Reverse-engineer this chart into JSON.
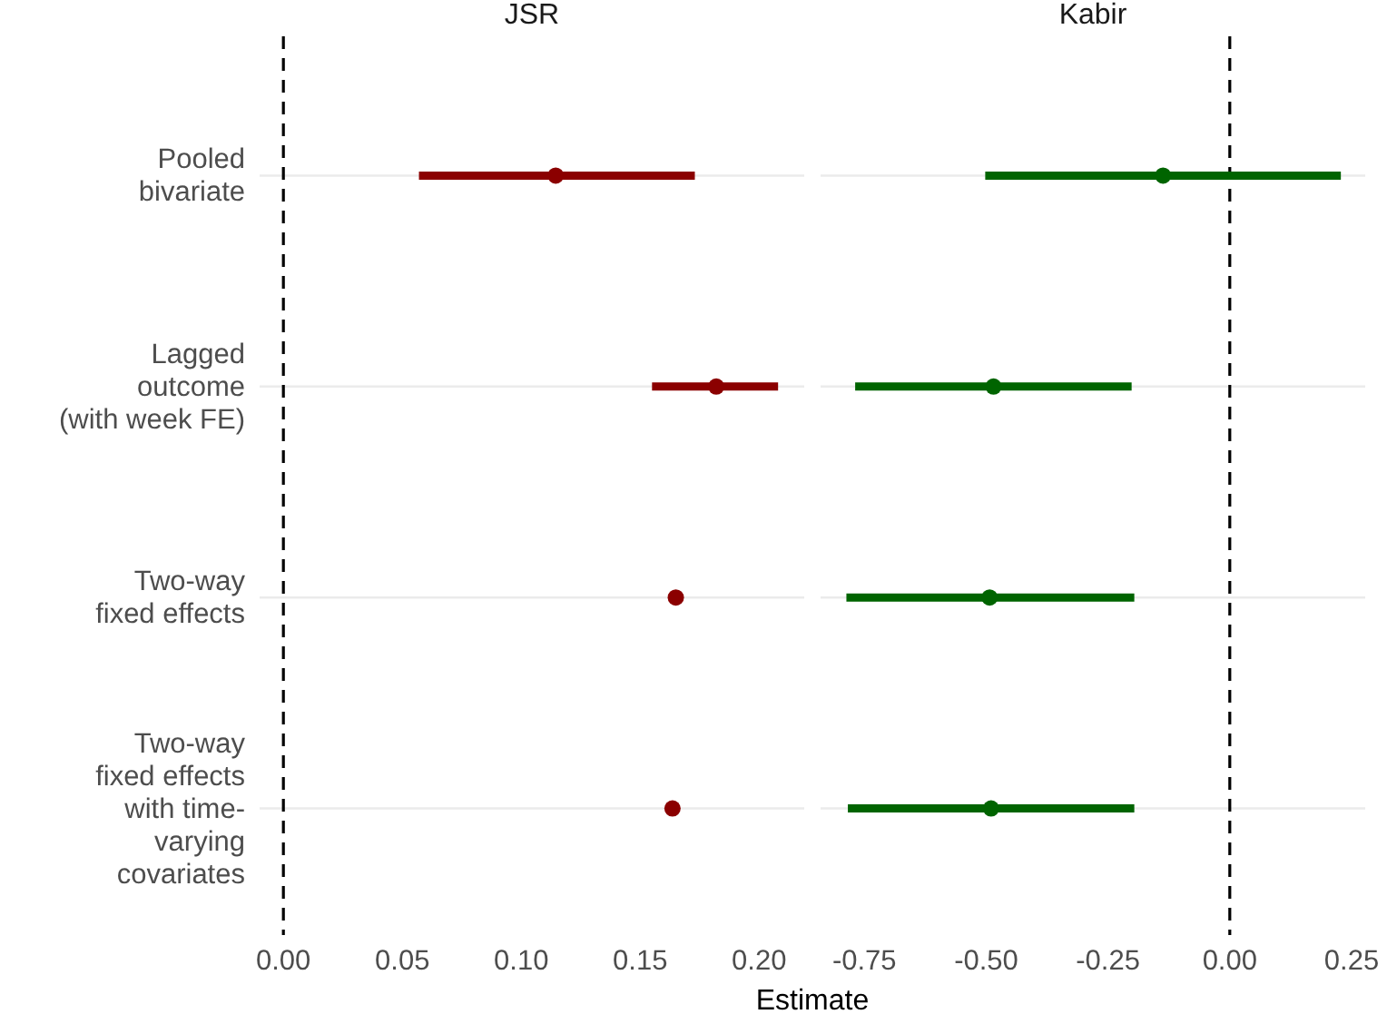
{
  "chart_data": [
    {
      "type": "scatter",
      "title": "JSR",
      "xlabel": "Estimate",
      "orientation": "horizontal",
      "categories": [
        "Pooled\nbivariate",
        "Lagged\noutcome\n(with week FE)",
        "Two-way\nfixed effects",
        "Two-way\nfixed effects\nwith time-\nvarying\ncovariates"
      ],
      "series": [
        {
          "color": "#8b0000",
          "values": [
            0.1145,
            0.182,
            0.165,
            0.1636
          ],
          "errors": [
            [
              0.057,
              0.173
            ],
            [
              0.155,
              0.208
            ],
            null,
            null
          ]
        }
      ],
      "xlim": [
        -0.01,
        0.219
      ],
      "xticks": [
        {
          "value": 0,
          "label": "0.00"
        },
        0.05,
        {
          "value": 0.1,
          "label": "0.10"
        },
        0.15,
        {
          "value": 0.2,
          "label": "0.20"
        }
      ],
      "ref_lines": [
        {
          "axis": "x",
          "value": 0,
          "line_style": "dashed"
        }
      ],
      "grid": "y",
      "marker": "circle"
    },
    {
      "type": "scatter",
      "title": "Kabir",
      "orientation": "horizontal",
      "series": [
        {
          "color": "#006400",
          "values": [
            -0.137,
            -0.485,
            -0.493,
            -0.49
          ],
          "errors": [
            [
              -0.502,
              0.228
            ],
            [
              -0.769,
              -0.2015
            ],
            [
              -0.787,
              -0.196
            ],
            [
              -0.784,
              -0.196
            ]
          ]
        }
      ],
      "xlim": [
        -0.84,
        0.278
      ],
      "xticks": [
        -0.75,
        {
          "value": -0.5,
          "label": "-0.50"
        },
        -0.25,
        {
          "value": 0,
          "label": "0.00"
        },
        0.25
      ],
      "ref_lines": [
        {
          "axis": "x",
          "value": 0,
          "line_style": "dashed"
        }
      ],
      "grid": "y",
      "marker": "circle",
      "tick_labels": "x"
    }
  ]
}
